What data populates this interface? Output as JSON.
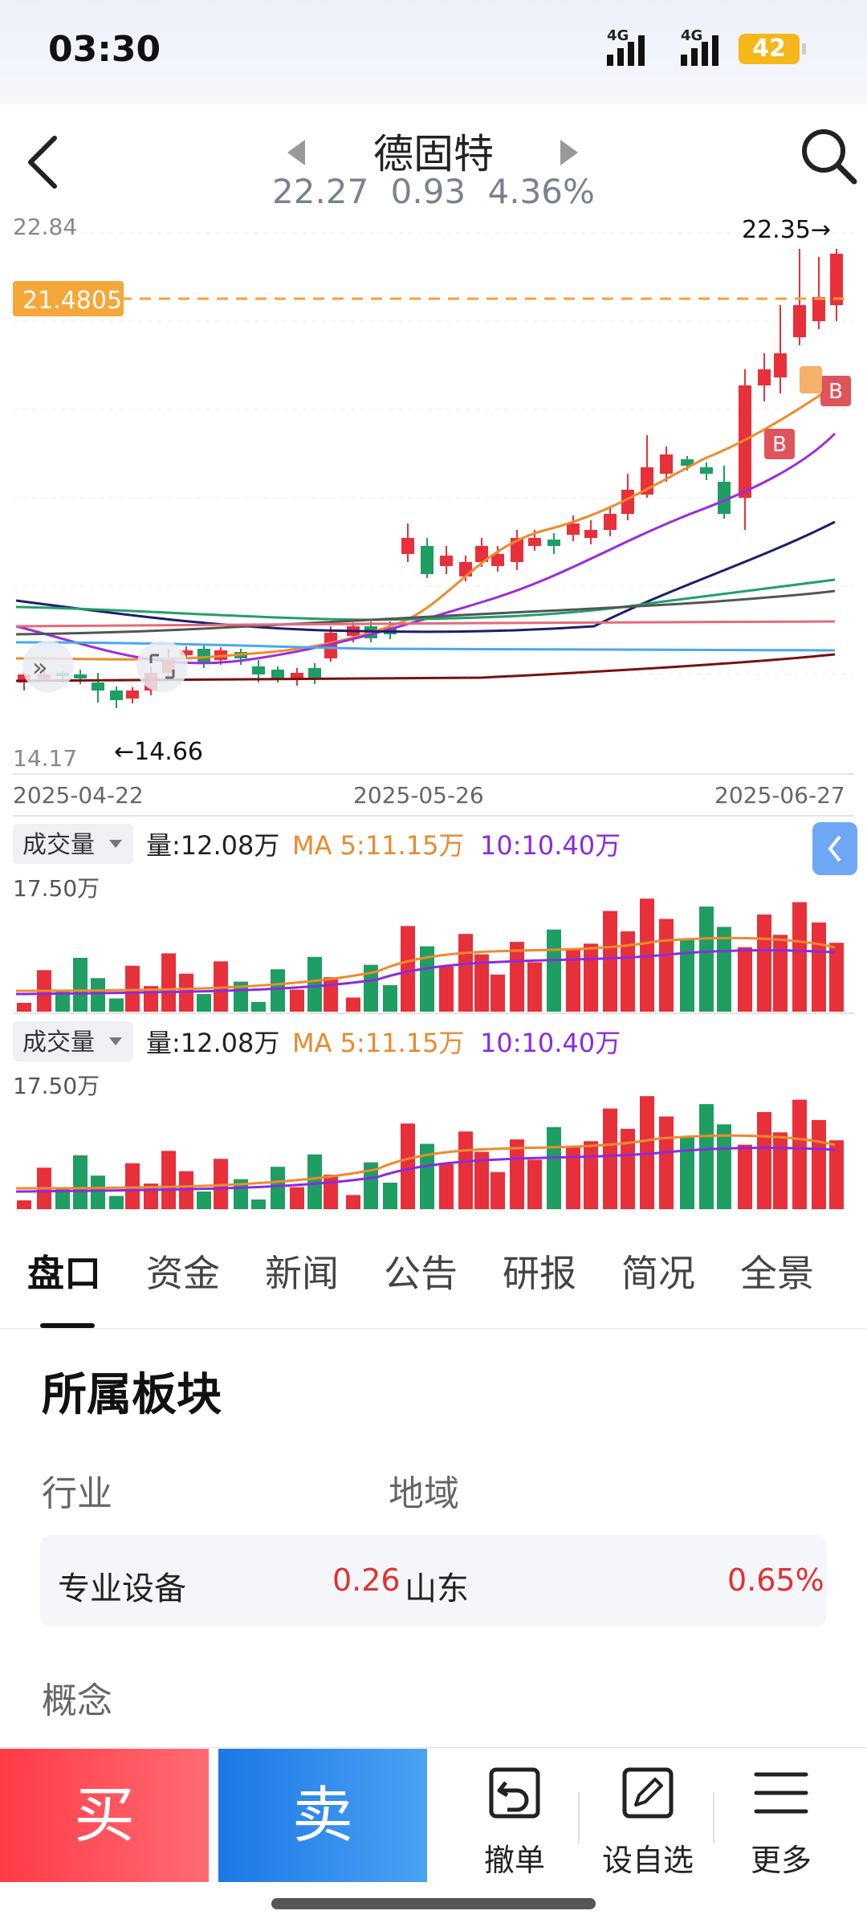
{
  "status_bar": {
    "time": "03:30",
    "net1": "4G",
    "net2": "4G",
    "battery": "42"
  },
  "header": {
    "name": "德固特",
    "price": "22.27",
    "change": "0.93",
    "pct": "4.36%"
  },
  "kline": {
    "y_top_label": "22.84",
    "y_bottom_label": "14.17",
    "price_line_label": "21.4805",
    "high_marker": "22.35→",
    "low_marker": "←14.66",
    "dates": [
      "2025-04-22",
      "2025-05-26",
      "2025-06-27"
    ],
    "buy_marker": "B",
    "buy_marker_2": "B",
    "colors": {
      "up": "#e8303a",
      "down": "#1e9e62"
    }
  },
  "volume_panels": [
    {
      "selector": "成交量",
      "vol_label": "量:12.08万",
      "ma5_label": "MA 5:11.15万",
      "ma10_label": "10:10.40万",
      "max_label": "17.50万"
    },
    {
      "selector": "成交量",
      "vol_label": "量:12.08万",
      "ma5_label": "MA 5:11.15万",
      "ma10_label": "10:10.40万",
      "max_label": "17.50万"
    }
  ],
  "tabs": [
    "盘口",
    "资金",
    "新闻",
    "公告",
    "研报",
    "简况",
    "全景"
  ],
  "sector": {
    "title": "所属板块",
    "industry_label": "行业",
    "region_label": "地域",
    "industry_name": "专业设备",
    "industry_pct": "0.26",
    "region_name": "山东",
    "region_pct": "0.65%",
    "concept_label": "概念"
  },
  "bottom": {
    "buy": "买",
    "sell": "卖",
    "cancel": "撤单",
    "watch": "设自选",
    "more": "更多"
  }
}
